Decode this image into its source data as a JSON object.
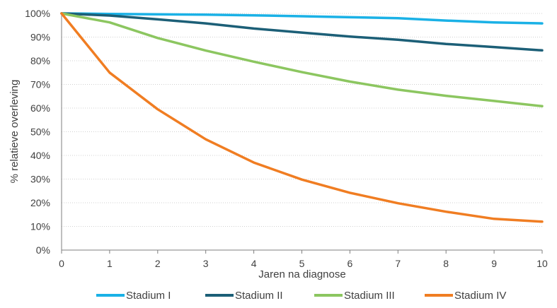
{
  "chart_data": {
    "type": "line",
    "title": "",
    "xlabel": "Jaren na diagnose",
    "ylabel": "% relatieve overleving",
    "x": [
      0,
      1,
      2,
      3,
      4,
      5,
      6,
      7,
      8,
      9,
      10
    ],
    "xlim": [
      0,
      10
    ],
    "ylim": [
      0,
      100
    ],
    "y_ticks": [
      0,
      10,
      20,
      30,
      40,
      50,
      60,
      70,
      80,
      90,
      100
    ],
    "y_tick_format": "percent",
    "grid": "horizontal-dotted",
    "legend_position": "bottom",
    "series": [
      {
        "name": "Stadium I",
        "color": "#1ab1e6",
        "values": [
          100,
          99.8,
          99.6,
          99.5,
          99.2,
          98.8,
          98.4,
          98.0,
          97.0,
          96.2,
          95.8
        ]
      },
      {
        "name": "Stadium II",
        "color": "#1c5f77",
        "values": [
          100,
          99.1,
          97.5,
          95.8,
          93.6,
          91.9,
          90.2,
          88.9,
          87.1,
          85.8,
          84.4
        ]
      },
      {
        "name": "Stadium III",
        "color": "#8cc660",
        "values": [
          100,
          96.2,
          89.6,
          84.3,
          79.6,
          75.2,
          71.2,
          67.8,
          65.2,
          63.0,
          60.8
        ]
      },
      {
        "name": "Stadium IV",
        "color": "#f07d22",
        "values": [
          100,
          75.0,
          59.5,
          46.8,
          37.0,
          29.8,
          24.2,
          19.8,
          16.2,
          13.2,
          12.0
        ]
      }
    ]
  }
}
